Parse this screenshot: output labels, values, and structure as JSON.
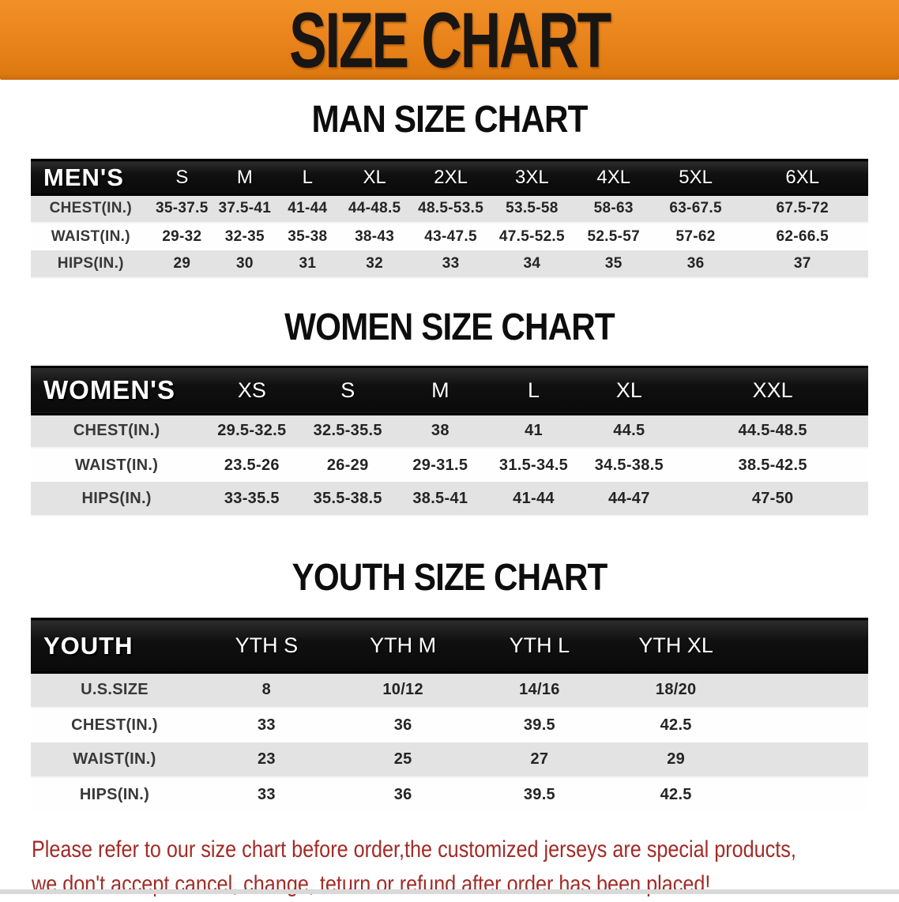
{
  "banner": {
    "title": "SIZE CHART",
    "bg_color": "#E8821A"
  },
  "sections": [
    {
      "title": "MAN SIZE CHART",
      "table": {
        "header_label": "MEN'S",
        "columns": [
          "S",
          "M",
          "L",
          "XL",
          "2XL",
          "3XL",
          "4XL",
          "5XL",
          "6XL"
        ],
        "rows": [
          {
            "label": "CHEST(IN.)",
            "values": [
              "35-37.5",
              "37.5-41",
              "41-44",
              "44-48.5",
              "48.5-53.5",
              "53.5-58",
              "58-63",
              "63-67.5",
              "67.5-72"
            ]
          },
          {
            "label": "WAIST(IN.)",
            "values": [
              "29-32",
              "32-35",
              "35-38",
              "38-43",
              "43-47.5",
              "47.5-52.5",
              "52.5-57",
              "57-62",
              "62-66.5"
            ]
          },
          {
            "label": "HIPS(IN.)",
            "values": [
              "29",
              "30",
              "31",
              "32",
              "33",
              "34",
              "35",
              "36",
              "37"
            ]
          }
        ]
      }
    },
    {
      "title": "WOMEN SIZE CHART",
      "table": {
        "header_label": "WOMEN'S",
        "columns": [
          "XS",
          "S",
          "M",
          "L",
          "XL",
          "XXL"
        ],
        "rows": [
          {
            "label": "CHEST(IN.)",
            "values": [
              "29.5-32.5",
              "32.5-35.5",
              "38",
              "41",
              "44.5",
              "44.5-48.5"
            ]
          },
          {
            "label": "WAIST(IN.)",
            "values": [
              "23.5-26",
              "26-29",
              "29-31.5",
              "31.5-34.5",
              "34.5-38.5",
              "38.5-42.5"
            ]
          },
          {
            "label": "HIPS(IN.)",
            "values": [
              "33-35.5",
              "35.5-38.5",
              "38.5-41",
              "41-44",
              "44-47",
              "47-50"
            ]
          }
        ]
      }
    },
    {
      "title": "YOUTH SIZE CHART",
      "table": {
        "header_label": "YOUTH",
        "columns": [
          "YTH S",
          "YTH M",
          "YTH L",
          "YTH XL"
        ],
        "rows": [
          {
            "label": "U.S.SIZE",
            "values": [
              "8",
              "10/12",
              "14/16",
              "18/20"
            ]
          },
          {
            "label": "CHEST(IN.)",
            "values": [
              "33",
              "36",
              "39.5",
              "42.5"
            ]
          },
          {
            "label": "WAIST(IN.)",
            "values": [
              "23",
              "25",
              "27",
              "29"
            ]
          },
          {
            "label": "HIPS(IN.)",
            "values": [
              "33",
              "36",
              "39.5",
              "42.5"
            ]
          }
        ]
      }
    }
  ],
  "disclaimer": {
    "lines": [
      "Please refer to our size chart before order,the customized jerseys are special products,",
      "we don't accept cancel, change, teturn or refund after order has been placed!"
    ],
    "color": "#A22B26"
  }
}
